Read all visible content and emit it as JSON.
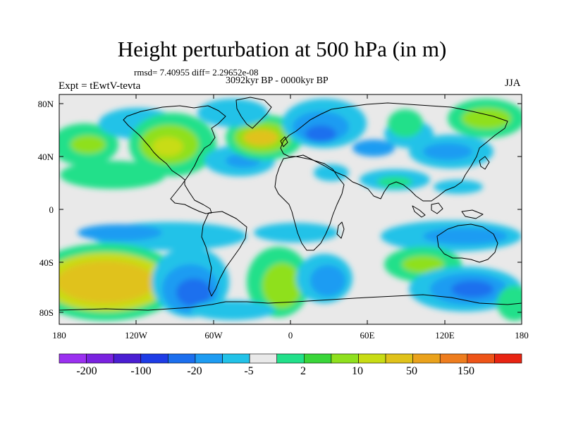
{
  "title": "Height perturbation at 500 hPa (in m)",
  "stats": "rmsd= 7.40955 diff= 2.29652e-08",
  "period": "3092kyr BP - 0000kyr BP",
  "experiment": "Expt = tEwtV-tevta",
  "season": "JJA",
  "lat_labels": [
    "80N",
    "40N",
    "0",
    "40S",
    "80S"
  ],
  "lon_labels": [
    "180",
    "120W",
    "60W",
    "0",
    "60E",
    "120E",
    "180"
  ],
  "colorbar": {
    "labels": [
      "-200",
      "-100",
      "-20",
      "-5",
      "2",
      "10",
      "50",
      "150"
    ],
    "colors": [
      "#9b30f0",
      "#7a22e0",
      "#4a1ed2",
      "#1e3ce6",
      "#1c6fee",
      "#1e9cf2",
      "#22c2e8",
      "#e9e9e9",
      "#22e08a",
      "#3ad63a",
      "#8fe01e",
      "#c8dc14",
      "#e0c21a",
      "#eaa21c",
      "#ee7d1e",
      "#ee5418",
      "#e82412"
    ]
  }
}
